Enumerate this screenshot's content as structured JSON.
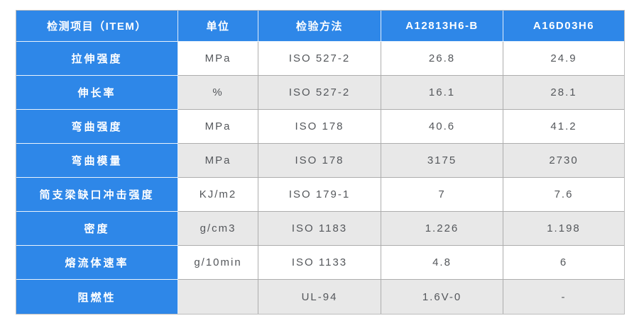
{
  "chart_data": {
    "type": "table",
    "columns": [
      "检测项目（ITEM）",
      "单位",
      "检验方法",
      "A12813H6-B",
      "A16D03H6"
    ],
    "rows": [
      [
        "拉伸强度",
        "MPa",
        "ISO 527-2",
        "26.8",
        "24.9"
      ],
      [
        "伸长率",
        "%",
        "ISO 527-2",
        "16.1",
        "28.1"
      ],
      [
        "弯曲强度",
        "MPa",
        "ISO 178",
        "40.6",
        "41.2"
      ],
      [
        "弯曲模量",
        "MPa",
        "ISO 178",
        "3175",
        "2730"
      ],
      [
        "简支梁缺口冲击强度",
        "KJ/m2",
        "ISO 179-1",
        "7",
        "7.6"
      ],
      [
        "密度",
        "g/cm3",
        "ISO 1183",
        "1.226",
        "1.198"
      ],
      [
        "熔流体速率",
        "g/10min",
        "ISO 1133",
        "4.8",
        "6"
      ],
      [
        "阻燃性",
        "",
        "UL-94",
        "1.6V-0",
        "-"
      ]
    ],
    "layout": {
      "header_fill": "#2e87e8",
      "item_column_fill": "#2e87e8",
      "row_fill_odd": "#ffffff",
      "row_fill_even": "#e8e8e8",
      "grid_line_color": "#adadad",
      "header_text_color": "#ffffff",
      "data_text_color": "#54575b"
    }
  }
}
